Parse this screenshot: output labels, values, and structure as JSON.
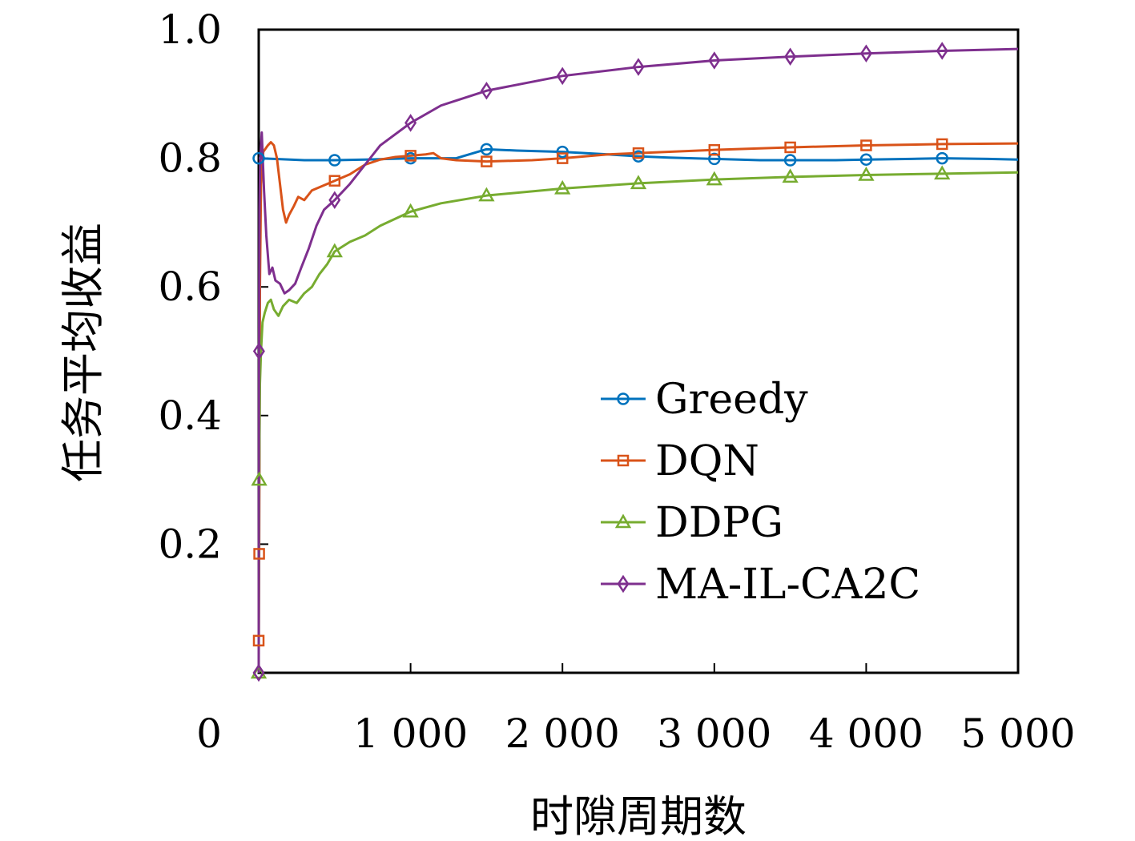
{
  "chart_data": {
    "type": "line",
    "title": "",
    "xlabel": "时隙周期数",
    "ylabel": "任务平均收益",
    "xlim": [
      0,
      5000
    ],
    "ylim": [
      0,
      1.0
    ],
    "x_ticks": [
      0,
      1000,
      2000,
      3000,
      4000,
      5000
    ],
    "x_tick_labels": [
      "0",
      "1 000",
      "2 000",
      "3 000",
      "4 000",
      "5 000"
    ],
    "y_ticks": [
      0.2,
      0.4,
      0.6,
      0.8,
      1.0
    ],
    "y_tick_labels": [
      "0.2",
      "0.4",
      "0.6",
      "0.8",
      "1.0"
    ],
    "grid": false,
    "legend_position": "center-right",
    "series": [
      {
        "name": "Greedy",
        "color": "#0072BD",
        "marker": "circle",
        "points": [
          [
            0,
            0.8
          ],
          [
            100,
            0.799
          ],
          [
            300,
            0.797
          ],
          [
            500,
            0.797
          ],
          [
            700,
            0.798
          ],
          [
            1000,
            0.8
          ],
          [
            1300,
            0.8
          ],
          [
            1500,
            0.814
          ],
          [
            1700,
            0.812
          ],
          [
            2000,
            0.81
          ],
          [
            2300,
            0.806
          ],
          [
            2500,
            0.803
          ],
          [
            2700,
            0.801
          ],
          [
            3000,
            0.799
          ],
          [
            3300,
            0.797
          ],
          [
            3500,
            0.797
          ],
          [
            3800,
            0.797
          ],
          [
            4000,
            0.798
          ],
          [
            4300,
            0.799
          ],
          [
            4500,
            0.8
          ],
          [
            4800,
            0.799
          ],
          [
            5000,
            0.798
          ]
        ],
        "marker_x": [
          0,
          500,
          1000,
          1500,
          2000,
          2500,
          3000,
          3500,
          4000,
          4500
        ]
      },
      {
        "name": "DQN",
        "color": "#D95319",
        "marker": "square",
        "points": [
          [
            0,
            0.05
          ],
          [
            3,
            0.185
          ],
          [
            8,
            0.6
          ],
          [
            15,
            0.76
          ],
          [
            30,
            0.81
          ],
          [
            60,
            0.82
          ],
          [
            80,
            0.825
          ],
          [
            100,
            0.82
          ],
          [
            120,
            0.8
          ],
          [
            140,
            0.76
          ],
          [
            160,
            0.72
          ],
          [
            180,
            0.7
          ],
          [
            200,
            0.712
          ],
          [
            230,
            0.725
          ],
          [
            260,
            0.74
          ],
          [
            300,
            0.735
          ],
          [
            350,
            0.75
          ],
          [
            400,
            0.755
          ],
          [
            450,
            0.76
          ],
          [
            500,
            0.765
          ],
          [
            600,
            0.775
          ],
          [
            700,
            0.79
          ],
          [
            800,
            0.798
          ],
          [
            900,
            0.802
          ],
          [
            1000,
            0.804
          ],
          [
            1100,
            0.806
          ],
          [
            1150,
            0.808
          ],
          [
            1200,
            0.8
          ],
          [
            1300,
            0.797
          ],
          [
            1500,
            0.795
          ],
          [
            1800,
            0.797
          ],
          [
            2000,
            0.8
          ],
          [
            2300,
            0.806
          ],
          [
            2500,
            0.808
          ],
          [
            3000,
            0.813
          ],
          [
            3500,
            0.817
          ],
          [
            4000,
            0.82
          ],
          [
            4500,
            0.822
          ],
          [
            5000,
            0.823
          ]
        ],
        "marker_x": [
          0,
          3,
          500,
          1000,
          1500,
          2000,
          2500,
          3000,
          3500,
          4000,
          4500
        ]
      },
      {
        "name": "DDPG",
        "color": "#77AC30",
        "marker": "triangle",
        "points": [
          [
            0,
            0.0
          ],
          [
            3,
            0.3
          ],
          [
            8,
            0.45
          ],
          [
            15,
            0.5
          ],
          [
            25,
            0.545
          ],
          [
            40,
            0.56
          ],
          [
            60,
            0.575
          ],
          [
            80,
            0.58
          ],
          [
            100,
            0.565
          ],
          [
            130,
            0.555
          ],
          [
            160,
            0.57
          ],
          [
            200,
            0.58
          ],
          [
            250,
            0.575
          ],
          [
            300,
            0.59
          ],
          [
            350,
            0.6
          ],
          [
            400,
            0.62
          ],
          [
            450,
            0.635
          ],
          [
            500,
            0.655
          ],
          [
            600,
            0.67
          ],
          [
            700,
            0.68
          ],
          [
            800,
            0.695
          ],
          [
            1000,
            0.717
          ],
          [
            1200,
            0.73
          ],
          [
            1500,
            0.742
          ],
          [
            2000,
            0.753
          ],
          [
            2500,
            0.761
          ],
          [
            3000,
            0.767
          ],
          [
            3500,
            0.771
          ],
          [
            4000,
            0.774
          ],
          [
            4500,
            0.776
          ],
          [
            5000,
            0.778
          ]
        ],
        "marker_x": [
          0,
          3,
          500,
          1000,
          1500,
          2000,
          2500,
          3000,
          3500,
          4000,
          4500
        ]
      },
      {
        "name": "MA-IL-CA2C",
        "color": "#7E2F8E",
        "marker": "diamond",
        "points": [
          [
            0,
            0.0
          ],
          [
            2,
            0.5
          ],
          [
            5,
            0.72
          ],
          [
            10,
            0.8
          ],
          [
            20,
            0.84
          ],
          [
            35,
            0.75
          ],
          [
            50,
            0.68
          ],
          [
            70,
            0.62
          ],
          [
            90,
            0.63
          ],
          [
            110,
            0.61
          ],
          [
            140,
            0.605
          ],
          [
            170,
            0.59
          ],
          [
            200,
            0.595
          ],
          [
            240,
            0.605
          ],
          [
            280,
            0.63
          ],
          [
            330,
            0.66
          ],
          [
            380,
            0.695
          ],
          [
            430,
            0.72
          ],
          [
            500,
            0.735
          ],
          [
            600,
            0.76
          ],
          [
            700,
            0.79
          ],
          [
            800,
            0.82
          ],
          [
            1000,
            0.855
          ],
          [
            1200,
            0.882
          ],
          [
            1500,
            0.905
          ],
          [
            2000,
            0.928
          ],
          [
            2500,
            0.942
          ],
          [
            3000,
            0.952
          ],
          [
            3500,
            0.958
          ],
          [
            4000,
            0.963
          ],
          [
            4500,
            0.967
          ],
          [
            5000,
            0.97
          ]
        ],
        "marker_x": [
          0,
          2,
          500,
          1000,
          1500,
          2000,
          2500,
          3000,
          3500,
          4000,
          4500
        ]
      }
    ]
  }
}
